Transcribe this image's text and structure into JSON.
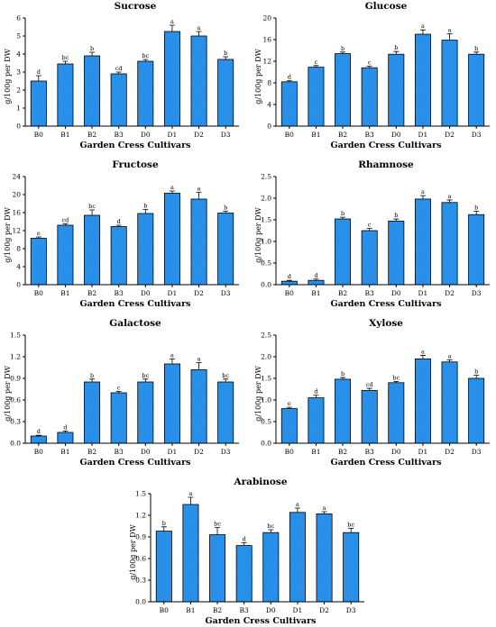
{
  "colors": {
    "bar_fill": "#2b95f0",
    "bar_stroke": "#000000"
  },
  "chart_data": [
    {
      "type": "bar",
      "title": "Sucrose",
      "xlabel": "Garden Cress Cultivars",
      "ylabel": "g/100g per DW",
      "categories": [
        "B0",
        "B1",
        "B2",
        "B3",
        "D0",
        "D1",
        "D2",
        "D3"
      ],
      "values": [
        2.5,
        3.45,
        3.9,
        2.9,
        3.6,
        5.25,
        5.0,
        3.7
      ],
      "errors": [
        0.3,
        0.15,
        0.2,
        0.1,
        0.1,
        0.35,
        0.25,
        0.15
      ],
      "significance": [
        "d",
        "bc",
        "b",
        "cd",
        "bc",
        "a",
        "a",
        "b"
      ],
      "ylim": [
        0,
        6
      ],
      "yticks": [
        "0",
        "1",
        "2",
        "3",
        "4",
        "5",
        "6"
      ]
    },
    {
      "type": "bar",
      "title": "Glucose",
      "xlabel": "Garden Cress Cultivars",
      "ylabel": "g/100g per DW",
      "categories": [
        "B0",
        "B1",
        "B2",
        "B3",
        "D0",
        "D1",
        "D2",
        "D3"
      ],
      "values": [
        8.2,
        10.9,
        13.4,
        10.8,
        13.3,
        17.0,
        15.9,
        13.3
      ],
      "errors": [
        0.2,
        0.3,
        0.3,
        0.3,
        0.5,
        0.8,
        1.2,
        0.4
      ],
      "significance": [
        "d",
        "c",
        "b",
        "c",
        "b",
        "a",
        "a",
        "b"
      ],
      "ylim": [
        0,
        20
      ],
      "yticks": [
        "0",
        "4",
        "8",
        "12",
        "16",
        "20"
      ]
    },
    {
      "type": "bar",
      "title": "Fructose",
      "xlabel": "Garden Cress Cultivars",
      "ylabel": "g/100g per DW",
      "categories": [
        "B0",
        "B1",
        "B2",
        "B3",
        "D0",
        "D1",
        "D2",
        "D3"
      ],
      "values": [
        10.3,
        13.2,
        15.4,
        12.9,
        15.8,
        20.3,
        19.0,
        15.9
      ],
      "errors": [
        0.3,
        0.3,
        1.2,
        0.3,
        0.9,
        0.5,
        1.5,
        0.4
      ],
      "significance": [
        "e",
        "cd",
        "bc",
        "d",
        "b",
        "a",
        "a",
        "b"
      ],
      "ylim": [
        0,
        24
      ],
      "yticks": [
        "0",
        "4",
        "8",
        "12",
        "16",
        "20",
        "24"
      ]
    },
    {
      "type": "bar",
      "title": "Rhamnose",
      "xlabel": "Garden Cress Cultivars",
      "ylabel": "g/100g per DW",
      "categories": [
        "B0",
        "B1",
        "B2",
        "B3",
        "D0",
        "D1",
        "D2",
        "D3"
      ],
      "values": [
        0.08,
        0.1,
        1.52,
        1.25,
        1.47,
        1.98,
        1.9,
        1.62
      ],
      "errors": [
        0.02,
        0.03,
        0.04,
        0.05,
        0.05,
        0.08,
        0.06,
        0.08
      ],
      "significance": [
        "d",
        "d",
        "b",
        "c",
        "b",
        "a",
        "a",
        "b"
      ],
      "ylim": [
        0,
        2.5
      ],
      "yticks": [
        "0.0",
        "0.5",
        "1.0",
        "1.5",
        "2.0",
        "2.5"
      ]
    },
    {
      "type": "bar",
      "title": "Galactose",
      "xlabel": "Garden Cress Cultivars",
      "ylabel": "g/100g per DW",
      "categories": [
        "B0",
        "B1",
        "B2",
        "B3",
        "D0",
        "D1",
        "D2",
        "D3"
      ],
      "values": [
        0.1,
        0.15,
        0.85,
        0.7,
        0.85,
        1.1,
        1.02,
        0.85
      ],
      "errors": [
        0.01,
        0.02,
        0.04,
        0.02,
        0.04,
        0.07,
        0.1,
        0.04
      ],
      "significance": [
        "d",
        "d",
        "b",
        "c",
        "bc",
        "a",
        "a",
        "bc"
      ],
      "ylim": [
        0,
        1.5
      ],
      "yticks": [
        "0.0",
        "0.3",
        "0.6",
        "0.9",
        "1.2",
        "1.5"
      ]
    },
    {
      "type": "bar",
      "title": "Xylose",
      "xlabel": "Garden Cress Cultivars",
      "ylabel": "g/100g per DW",
      "categories": [
        "B0",
        "B1",
        "B2",
        "B3",
        "D0",
        "D1",
        "D2",
        "D3"
      ],
      "values": [
        0.8,
        1.05,
        1.48,
        1.22,
        1.4,
        1.95,
        1.88,
        1.5
      ],
      "errors": [
        0.03,
        0.06,
        0.04,
        0.05,
        0.03,
        0.08,
        0.05,
        0.07
      ],
      "significance": [
        "e",
        "d",
        "b",
        "cd",
        "bc",
        "a",
        "a",
        "b"
      ],
      "ylim": [
        0,
        2.5
      ],
      "yticks": [
        "0.0",
        "0.5",
        "1.0",
        "1.5",
        "2.0",
        "2.5"
      ]
    },
    {
      "type": "bar",
      "title": "Arabinose",
      "xlabel": "Garden Cress Cultivars",
      "ylabel": "g/100g per DW",
      "categories": [
        "B0",
        "B1",
        "B2",
        "B3",
        "D0",
        "D1",
        "D2",
        "D3"
      ],
      "values": [
        0.98,
        1.35,
        0.93,
        0.78,
        0.96,
        1.24,
        1.22,
        0.96
      ],
      "errors": [
        0.06,
        0.1,
        0.1,
        0.04,
        0.04,
        0.06,
        0.03,
        0.06
      ],
      "significance": [
        "b",
        "a",
        "bc",
        "d",
        "bc",
        "a",
        "a",
        "bc"
      ],
      "ylim": [
        0,
        1.5
      ],
      "yticks": [
        "0.0",
        "0.3",
        "0.6",
        "0.9",
        "1.2",
        "1.5"
      ]
    }
  ]
}
